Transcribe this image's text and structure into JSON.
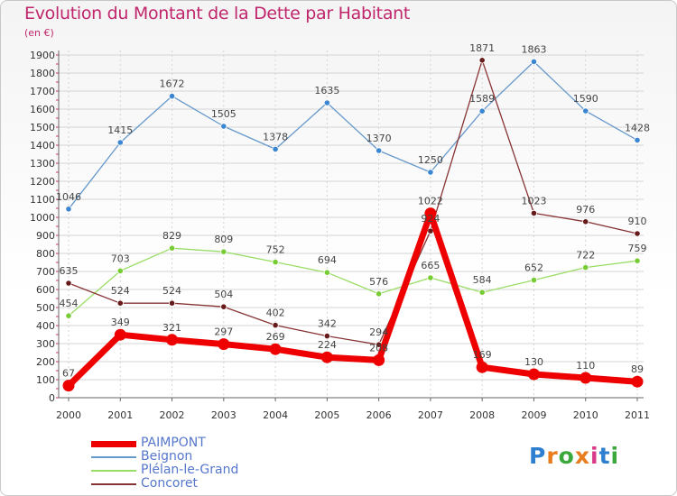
{
  "title": "Evolution du Montant de la Dette par Habitant",
  "subtitle": "(en €)",
  "logo": {
    "letters": [
      "P",
      "r",
      "o",
      "x",
      "i",
      "t",
      "i"
    ],
    "colors": [
      "#2f7fd0",
      "#e87c1e",
      "#3aa83a",
      "#e87c1e",
      "#d93a8a",
      "#2f7fd0",
      "#3aa83a"
    ]
  },
  "chart_data": {
    "type": "line",
    "x": [
      "2000",
      "2001",
      "2002",
      "2003",
      "2004",
      "2005",
      "2006",
      "2007",
      "2008",
      "2009",
      "2010",
      "2011"
    ],
    "ylim": [
      0,
      1900
    ],
    "yticks": [
      0,
      100,
      200,
      300,
      400,
      500,
      600,
      700,
      800,
      900,
      1000,
      1100,
      1200,
      1300,
      1400,
      1500,
      1600,
      1700,
      1800,
      1900
    ],
    "grid": true,
    "legend_position": "bottom-left",
    "series": [
      {
        "name": "PAIMPONT",
        "color": "#ee0000",
        "values": [
          67,
          349,
          321,
          297,
          269,
          224,
          208,
          1022,
          169,
          130,
          110,
          89
        ],
        "labels": [
          "67",
          "349",
          "321",
          "297",
          "269",
          "224",
          "208",
          "1022",
          "169",
          "130",
          "110",
          "89"
        ]
      },
      {
        "name": "Beignon",
        "color": "#6699cc",
        "values": [
          1046,
          1415,
          1672,
          1505,
          1378,
          1635,
          1370,
          1250,
          1589,
          1863,
          1590,
          1428
        ],
        "labels": [
          "1046",
          "1415",
          "1672",
          "1505",
          "1378",
          "1635",
          "1370",
          "1250",
          "1589",
          "1863",
          "1590",
          "1428"
        ]
      },
      {
        "name": "Plélan-le-Grand",
        "color": "#99dd66",
        "values": [
          454,
          703,
          829,
          809,
          752,
          694,
          576,
          665,
          584,
          652,
          722,
          759
        ],
        "labels": [
          "454",
          "703",
          "829",
          "809",
          "752",
          "694",
          "576",
          "665",
          "584",
          "652",
          "722",
          "759"
        ]
      },
      {
        "name": "Concoret",
        "color": "#883333",
        "values": [
          635,
          524,
          524,
          504,
          402,
          342,
          294,
          924,
          1871,
          1023,
          976,
          910
        ],
        "labels": [
          "635",
          "524",
          "524",
          "504",
          "402",
          "342",
          "294",
          "924",
          "1871",
          "1023",
          "976",
          "910"
        ]
      }
    ]
  }
}
